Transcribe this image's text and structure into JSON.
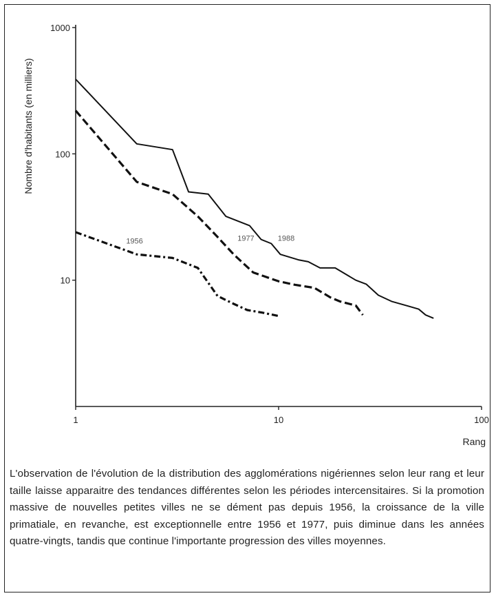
{
  "chart_data": {
    "type": "line",
    "x_scale": "log",
    "y_scale": "log",
    "xlim": [
      1,
      100
    ],
    "ylim": [
      1,
      1000
    ],
    "x_ticks": [
      "1",
      "10",
      "100"
    ],
    "y_ticks": [
      "1000",
      "100",
      "10"
    ],
    "xlabel": "Rang",
    "ylabel": "Nombre d'habitants (en milliers)",
    "series": [
      {
        "name": "1988",
        "style": "solid",
        "points": [
          [
            1,
            390
          ],
          [
            2,
            120
          ],
          [
            3,
            108
          ],
          [
            3.6,
            50
          ],
          [
            4.5,
            48
          ],
          [
            5.5,
            32
          ],
          [
            7.2,
            27
          ],
          [
            8.2,
            21
          ],
          [
            9.2,
            19.5
          ],
          [
            10.2,
            16
          ],
          [
            12.5,
            14.5
          ],
          [
            14,
            14
          ],
          [
            16,
            12.5
          ],
          [
            19,
            12.5
          ],
          [
            24,
            10
          ],
          [
            27,
            9.3
          ],
          [
            31,
            7.6
          ],
          [
            36,
            6.8
          ],
          [
            44,
            6.2
          ],
          [
            49,
            5.9
          ],
          [
            53,
            5.3
          ],
          [
            58,
            5
          ]
        ]
      },
      {
        "name": "1977",
        "style": "dashed",
        "points": [
          [
            1,
            220
          ],
          [
            2,
            60
          ],
          [
            3,
            48
          ],
          [
            4,
            32
          ],
          [
            5,
            22
          ],
          [
            6,
            16
          ],
          [
            7.5,
            11.5
          ],
          [
            10,
            9.8
          ],
          [
            12,
            9.2
          ],
          [
            15,
            8.7
          ],
          [
            18,
            7.3
          ],
          [
            20,
            6.8
          ],
          [
            24,
            6.3
          ],
          [
            26,
            5.3
          ]
        ]
      },
      {
        "name": "1956",
        "style": "dashdot",
        "points": [
          [
            1,
            24
          ],
          [
            2,
            16
          ],
          [
            3,
            15
          ],
          [
            4,
            12.5
          ],
          [
            5,
            7.5
          ],
          [
            6,
            6.5
          ],
          [
            7,
            5.8
          ],
          [
            8.5,
            5.5
          ],
          [
            10,
            5.2
          ]
        ]
      }
    ],
    "series_labels": [
      "1956",
      "1977",
      "1988"
    ]
  },
  "caption": "L'observation de l'évolution de la distribution des agglomérations nigériennes selon leur rang et leur taille laisse apparaitre des tendances différentes selon les périodes intercensitaires. Si la promotion massive de nouvelles petites villes ne se dément pas depuis 1956, la croissance de la ville primatiale, en revanche, est exceptionnelle entre 1956 et 1977, puis diminue dans les années quatre-vingts, tandis que continue l'importante progression des villes moyennes."
}
